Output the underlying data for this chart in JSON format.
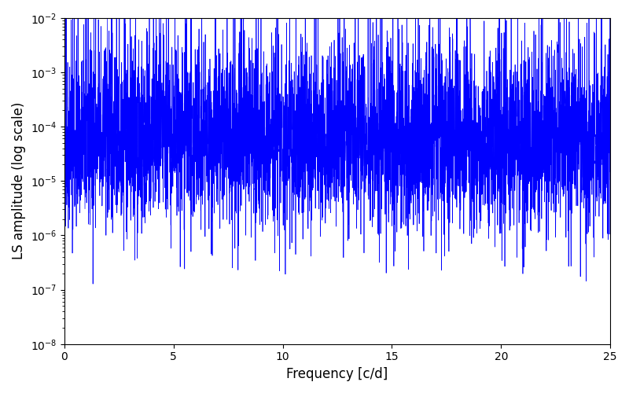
{
  "title": "",
  "xlabel": "Frequency [c/d]",
  "ylabel": "LS amplitude (log scale)",
  "xlim": [
    0,
    25
  ],
  "ylim": [
    1e-08,
    0.01
  ],
  "line_color": "#0000ff",
  "line_width": 0.5,
  "figsize": [
    8.0,
    5.0
  ],
  "dpi": 100,
  "seed": 42,
  "n_points": 5000,
  "background_color": "#ffffff"
}
